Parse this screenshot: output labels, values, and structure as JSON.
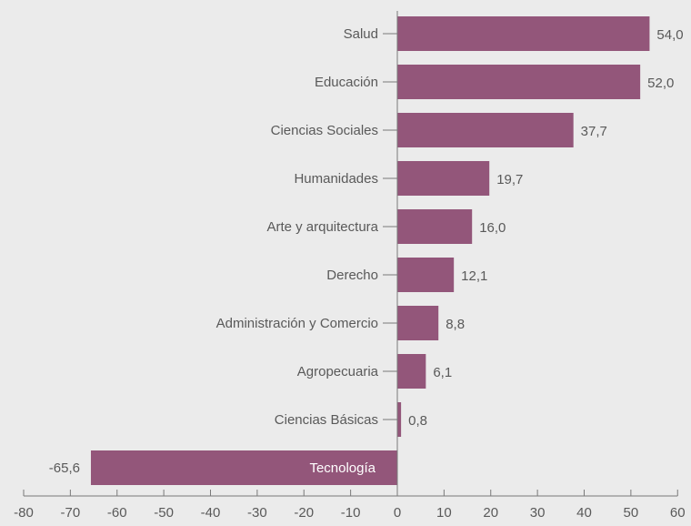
{
  "chart_data": {
    "type": "bar",
    "orientation": "horizontal",
    "title": "",
    "xlabel": "",
    "ylabel": "",
    "categories": [
      "Salud",
      "Educación",
      "Ciencias Sociales",
      "Humanidades",
      "Arte y arquitectura",
      "Derecho",
      "Administración y Comercio",
      "Agropecuaria",
      "Ciencias Básicas",
      "Tecnología"
    ],
    "values": [
      54.0,
      52.0,
      37.7,
      19.7,
      16.0,
      12.1,
      8.8,
      6.1,
      0.8,
      -65.6
    ],
    "value_labels": [
      "54,0",
      "52,0",
      "37,7",
      "19,7",
      "16,0",
      "12,1",
      "8,8",
      "6,1",
      "0,8",
      "-65,6"
    ],
    "xlim": [
      -80,
      60
    ],
    "x_ticks": [
      -80,
      -70,
      -60,
      -50,
      -40,
      -30,
      -20,
      -10,
      0,
      10,
      20,
      30,
      40,
      50,
      60
    ],
    "x_tick_labels": [
      "-80",
      "-70",
      "-60",
      "-50",
      "-40",
      "-30",
      "-20",
      "-10",
      "0",
      "10",
      "20",
      "30",
      "40",
      "50",
      "60"
    ],
    "grid": false,
    "legend": "none",
    "colors": {
      "bar": "#93567a",
      "background": "#ebebeb",
      "text": "#595959",
      "axis": "#7a7a7a",
      "inner_label": "#ffffff"
    }
  }
}
